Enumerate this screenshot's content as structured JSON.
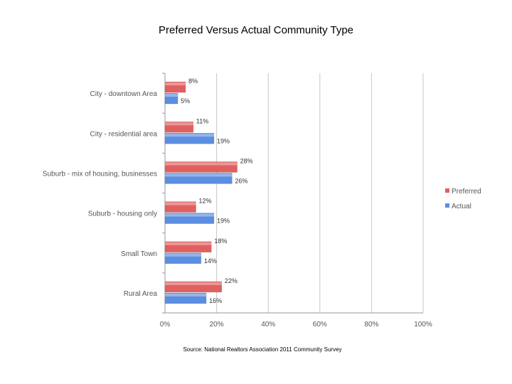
{
  "chart_data": {
    "type": "bar",
    "orientation": "horizontal",
    "title": "Preferred Versus Actual Community Type",
    "source_note": "Source: National Realtors Association 2011 Community Survey",
    "categories": [
      "City - downtown Area",
      "City - residential area",
      "Suburb - mix of housing, businesses",
      "Suburb - housing only",
      "Small Town",
      "Rural Area"
    ],
    "series": [
      {
        "name": "Preferred",
        "color": "#e06060",
        "values": [
          8,
          11,
          28,
          12,
          18,
          22
        ],
        "labels": [
          "8%",
          "11%",
          "28%",
          "12%",
          "18%",
          "22%"
        ]
      },
      {
        "name": "Actual",
        "color": "#5b8ee0",
        "values": [
          5,
          19,
          26,
          19,
          14,
          16
        ],
        "labels": [
          "5%",
          "19%",
          "26%",
          "19%",
          "14%",
          "16%"
        ]
      }
    ],
    "xlim": [
      0,
      100
    ],
    "xticks": [
      0,
      20,
      40,
      60,
      80,
      100
    ],
    "xtick_labels": [
      "0%",
      "20%",
      "40%",
      "60%",
      "80%",
      "100%"
    ],
    "grid": true,
    "legend": "right"
  }
}
